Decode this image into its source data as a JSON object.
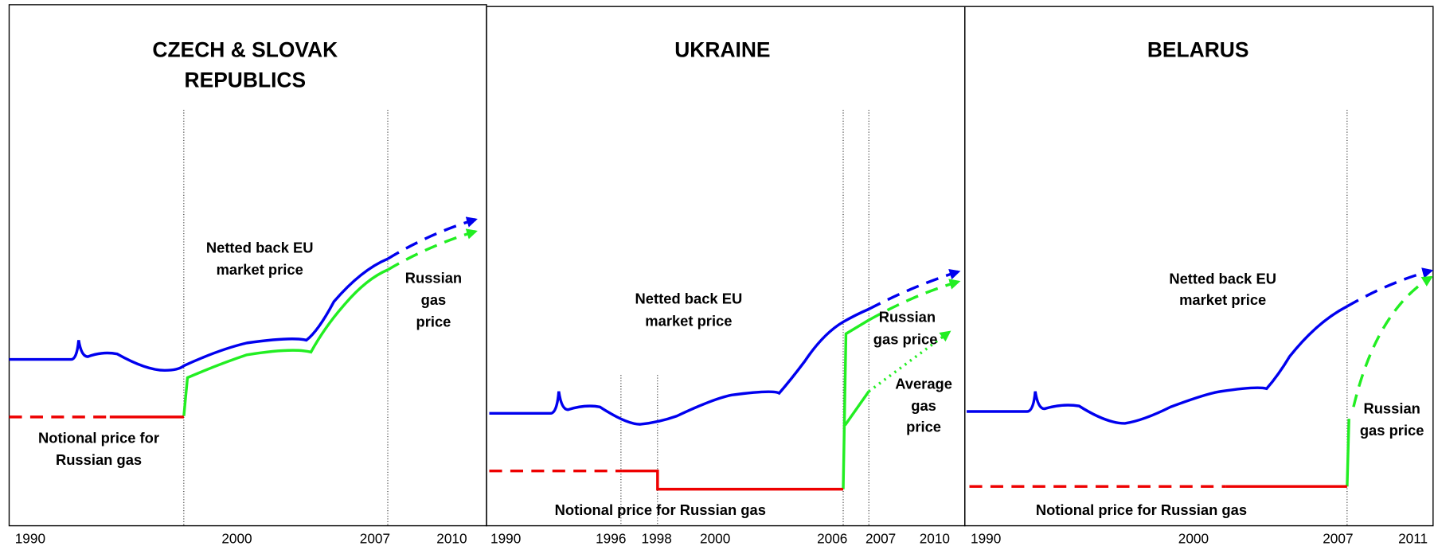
{
  "panels": [
    {
      "title": [
        "CZECH & SLOVAK",
        "REPUBLICS"
      ],
      "labels": [
        "Netted back EU",
        "market price",
        "Russian",
        "gas",
        "price",
        "Notional price for",
        "Russian gas"
      ],
      "xticks": [
        "1990",
        "2000",
        "2007",
        "2010"
      ]
    },
    {
      "title": [
        "UKRAINE"
      ],
      "labels": [
        "Netted back EU",
        "market price",
        "Russian",
        "gas price",
        "Average",
        "gas",
        "price",
        "Notional price for Russian gas"
      ],
      "xticks": [
        "1990",
        "1996",
        "1998",
        "2000",
        "2006",
        "2007",
        "2010"
      ]
    },
    {
      "title": [
        "BELARUS"
      ],
      "labels": [
        "Netted back EU",
        "market price",
        "Russian",
        "gas price",
        "Notional price for Russian gas"
      ],
      "xticks": [
        "1990",
        "2000",
        "2007",
        "2011"
      ]
    }
  ]
}
